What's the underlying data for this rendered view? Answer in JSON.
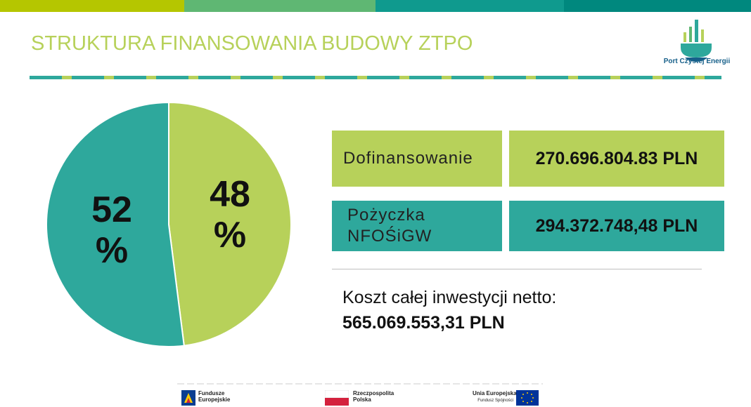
{
  "colors": {
    "green": "#b7d15a",
    "teal": "#2ea89c",
    "top_bar": [
      "#b5c600",
      "#5fb773",
      "#0f9a8e",
      "#00887e"
    ],
    "title": "#b7d15a",
    "logo_blue": "#17608a"
  },
  "header": {
    "title": "STRUKTURA FINANSOWANIA BUDOWY ZTPO",
    "logo_text": "Port Czystej Energii"
  },
  "chart_data": {
    "type": "pie",
    "title": "",
    "slices": [
      {
        "label": "Dofinansowanie",
        "value": 48,
        "color": "#b7d15a"
      },
      {
        "label": "Pożyczka NFOŚiGW",
        "value": 52,
        "color": "#2ea89c"
      }
    ],
    "data_labels": [
      {
        "line1": "48",
        "line2": "%"
      },
      {
        "line1": "52",
        "line2": "%"
      }
    ]
  },
  "table": {
    "rows": [
      {
        "label": "Dofinansowanie",
        "value": "270.696.804.83 PLN",
        "color": "green"
      },
      {
        "label_line1": "Pożyczka",
        "label_line2": "NFOŚiGW",
        "value": "294.372.748,48 PLN",
        "color": "teal"
      }
    ]
  },
  "total": {
    "label": "Koszt całej inwestycji netto:",
    "value": "565.069.553,31 PLN"
  },
  "footer": {
    "fe_line1": "Fundusze",
    "fe_line2": "Europejskie",
    "pl_line1": "Rzeczpospolita",
    "pl_line2": "Polska",
    "ue_line1": "Unia Europejska",
    "ue_line2": "Fundusz Spójności"
  }
}
